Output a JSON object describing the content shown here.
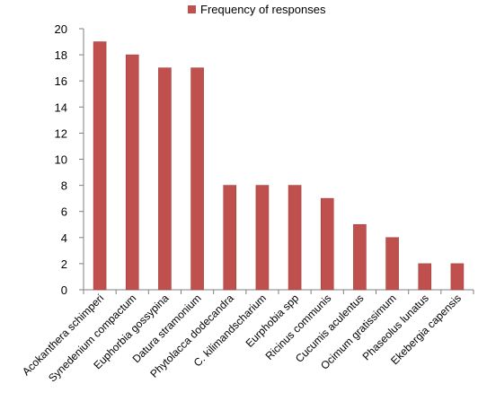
{
  "chart_data": {
    "type": "bar",
    "title": "",
    "xlabel": "",
    "ylabel": "",
    "legend": {
      "position": "top",
      "entries": [
        "Frequency of responses"
      ]
    },
    "ylim": [
      0,
      20
    ],
    "yticks": [
      0,
      2,
      4,
      6,
      8,
      10,
      12,
      14,
      16,
      18,
      20
    ],
    "grid": false,
    "categories": [
      "Acokanthera schimperi",
      "Synedenium compactum",
      "Euphorbia gossypina",
      "Datura stramonium",
      "Phytolacca dodecandra",
      "C. kilimandscharium",
      "Eurphobia spp",
      "Ricinus communis",
      "Cucumis aculentus",
      "Ocimum gratissimum",
      "Phaseolus lunatus",
      "Ekebergia capensis"
    ],
    "series": [
      {
        "name": "Frequency of responses",
        "color": "#c0504d",
        "values": [
          19,
          18,
          17,
          17,
          8,
          8,
          8,
          7,
          5,
          4,
          2,
          2
        ]
      }
    ]
  }
}
